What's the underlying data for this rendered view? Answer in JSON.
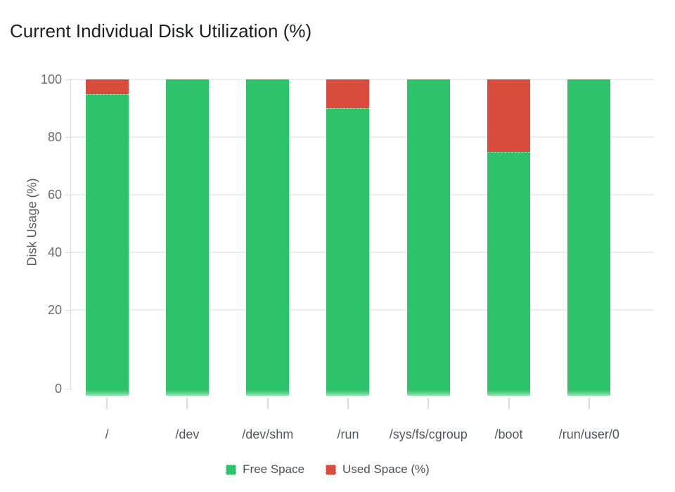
{
  "chart_data": {
    "type": "bar",
    "stacked": true,
    "title": "Current Individual Disk Utilization (%)",
    "ylabel": "Disk Usage (%)",
    "categories": [
      "/",
      "/dev",
      "/dev/shm",
      "/run",
      "/sys/fs/cgroup",
      "/boot",
      "/run/user/0"
    ],
    "series": [
      {
        "name": "Free Space",
        "color": "#2dc36a",
        "values": [
          95,
          100,
          100,
          90,
          100,
          75,
          100
        ]
      },
      {
        "name": "Used Space (%)",
        "color": "#d94b3c",
        "values": [
          5,
          0,
          0,
          10,
          0,
          25,
          0
        ]
      }
    ],
    "yticks": [
      100,
      80,
      60,
      40,
      20,
      0
    ],
    "ylim": [
      0,
      100
    ],
    "grid": true,
    "legend_position": "bottom",
    "colors": {
      "grid": "#ededed",
      "axis": "#e0e0e0",
      "tick_text": "#676c70",
      "category_text": "#4f585d",
      "title_text": "#1b1f22",
      "legend_text": "#4b5257"
    }
  }
}
